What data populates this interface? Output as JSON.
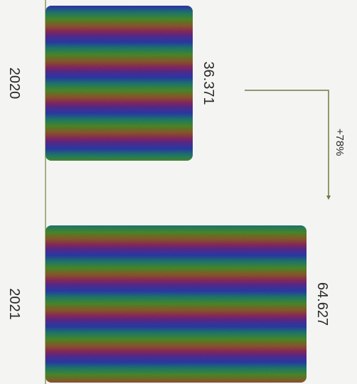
{
  "chart_data": {
    "type": "bar",
    "orientation": "rotated-90",
    "categories": [
      "2020",
      "2021"
    ],
    "values": [
      36.371,
      64.627
    ],
    "value_labels": [
      "36.371",
      "64.627"
    ],
    "annotation": {
      "text": "+78%",
      "from": "2020",
      "to": "2021"
    },
    "title": "",
    "xlabel": "",
    "ylabel": "",
    "ylim": [
      0,
      70
    ],
    "grid": false,
    "legend": "none",
    "bar_fill": "rainbow-wave",
    "colors": {
      "background": "#f4f4f3",
      "axis": "#8a9a5a",
      "arrow": "#6b7c3e",
      "annotation_text": "#7a6bb0",
      "text": "#2a2a2a"
    }
  }
}
